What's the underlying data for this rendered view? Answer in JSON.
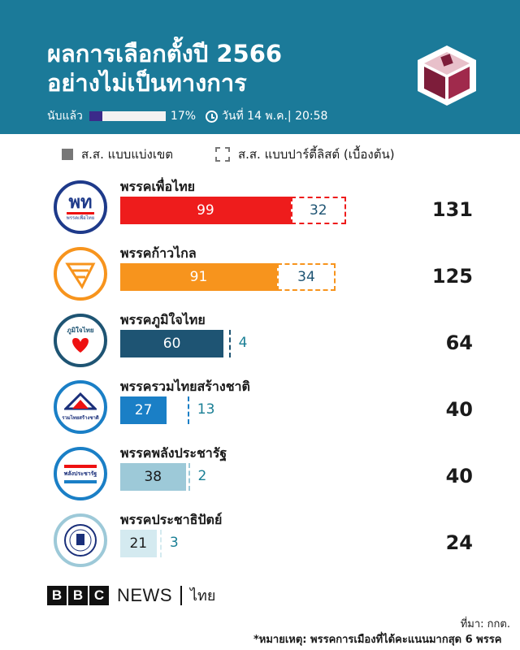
{
  "header": {
    "title_line1": "ผลการเลือกตั้งปี 2566",
    "title_line2": "อย่างไม่เป็นทางการ",
    "counted_label": "นับแล้ว",
    "counted_percent": "17%",
    "counted_fraction": 0.17,
    "date_time": "วันที่ 14 พ.ค.| 20:58",
    "colors": {
      "background": "#1b7a99",
      "progress": "#3b2a8a"
    }
  },
  "legend": {
    "constituency": "ส.ส. แบบแบ่งเขต",
    "party_list": "ส.ส. แบบปาร์ตี้ลิสต์ (เบื้องต้น)"
  },
  "chart_data": {
    "type": "bar",
    "stacked": true,
    "orientation": "horizontal",
    "categories": [
      "พรรคเพื่อไทย",
      "พรรคก้าวไกล",
      "พรรคภูมิใจไทย",
      "พรรครวมไทยสร้างชาติ",
      "พรรคพลังประชารัฐ",
      "พรรคประชาธิปัตย์"
    ],
    "series": [
      {
        "name": "ส.ส. แบบแบ่งเขต",
        "values": [
          99,
          91,
          60,
          27,
          38,
          21
        ]
      },
      {
        "name": "ส.ส. แบบปาร์ตี้ลิสต์ (เบื้องต้น)",
        "values": [
          32,
          34,
          4,
          13,
          2,
          3
        ]
      }
    ],
    "totals": [
      131,
      125,
      64,
      40,
      40,
      24
    ],
    "colors": [
      "#ee1c1c",
      "#f7941d",
      "#1e5473",
      "#1a7fc6",
      "#9dc9d8",
      "#d4eaf0"
    ],
    "xlim": [
      0,
      131
    ]
  },
  "parties": [
    {
      "logo_text": "พท",
      "logo_sub": "พรรคเพื่อไทย",
      "icon": "pheu-thai-logo-icon"
    },
    {
      "icon": "move-forward-logo-icon"
    },
    {
      "logo_text": "ภูมิใจไทย",
      "icon": "bhumjaithai-logo-icon"
    },
    {
      "logo_text": "รวมไทยสร้างชาติ",
      "icon": "ruam-thai-logo-icon"
    },
    {
      "logo_text": "พลังประชารัฐ",
      "icon": "palang-pracharat-logo-icon"
    },
    {
      "icon": "democrat-logo-icon"
    }
  ],
  "footer": {
    "brand_letters": [
      "B",
      "B",
      "C"
    ],
    "brand_news": "NEWS",
    "brand_lang": "ไทย",
    "source": "ที่มา: กกต.",
    "note": "*หมายเหตุ: พรรคการเมืองที่ได้คะแนนมากสุด 6 พรรค"
  }
}
